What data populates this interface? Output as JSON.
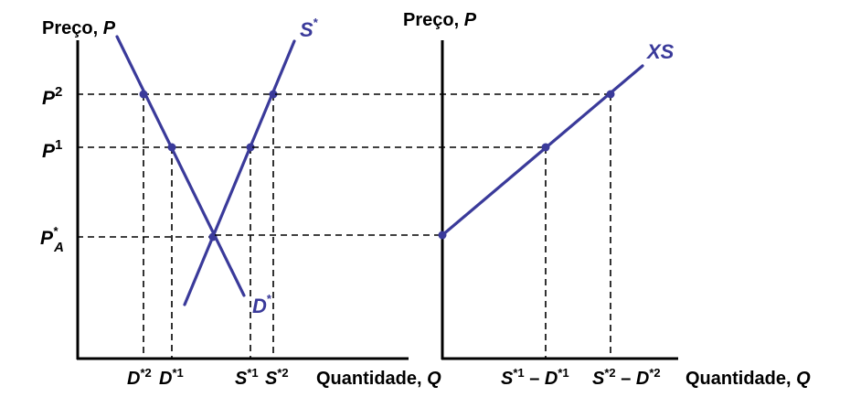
{
  "colors": {
    "curve": "#3a3a9a",
    "axis": "#000000",
    "dashed": "#000000",
    "background": "#ffffff"
  },
  "left_panel": {
    "y_axis_label": {
      "text": "Preço, ",
      "var": "P"
    },
    "x_axis_label": {
      "text": "Quantidade, ",
      "var": "Q"
    },
    "price_labels": {
      "p2": {
        "base": "P",
        "sup": "2"
      },
      "p1": {
        "base": "P",
        "sup": "1"
      },
      "pa": {
        "base": "P",
        "sup": "*",
        "sub": "A"
      }
    },
    "quantity_labels": {
      "d2": {
        "base": "D",
        "sup": "*2"
      },
      "d1": {
        "base": "D",
        "sup": "*1"
      },
      "s1": {
        "base": "S",
        "sup": "*1"
      },
      "s2": {
        "base": "S",
        "sup": "*2"
      }
    },
    "curves": {
      "supply": {
        "base": "S",
        "sup": "*"
      },
      "demand": {
        "base": "D",
        "sup": "*"
      }
    }
  },
  "right_panel": {
    "y_axis_label": {
      "text": "Preço, ",
      "var": "P"
    },
    "x_axis_label": {
      "text": "Quantidade, ",
      "var": "Q"
    },
    "curve_label": "XS",
    "quantity_labels": {
      "q1": {
        "a": "S",
        "a_sup": "*1",
        "op": " – ",
        "b": "D",
        "b_sup": "*1"
      },
      "q2": {
        "a": "S",
        "a_sup": "*2",
        "op": " – ",
        "b": "D",
        "b_sup": "*2"
      }
    }
  }
}
